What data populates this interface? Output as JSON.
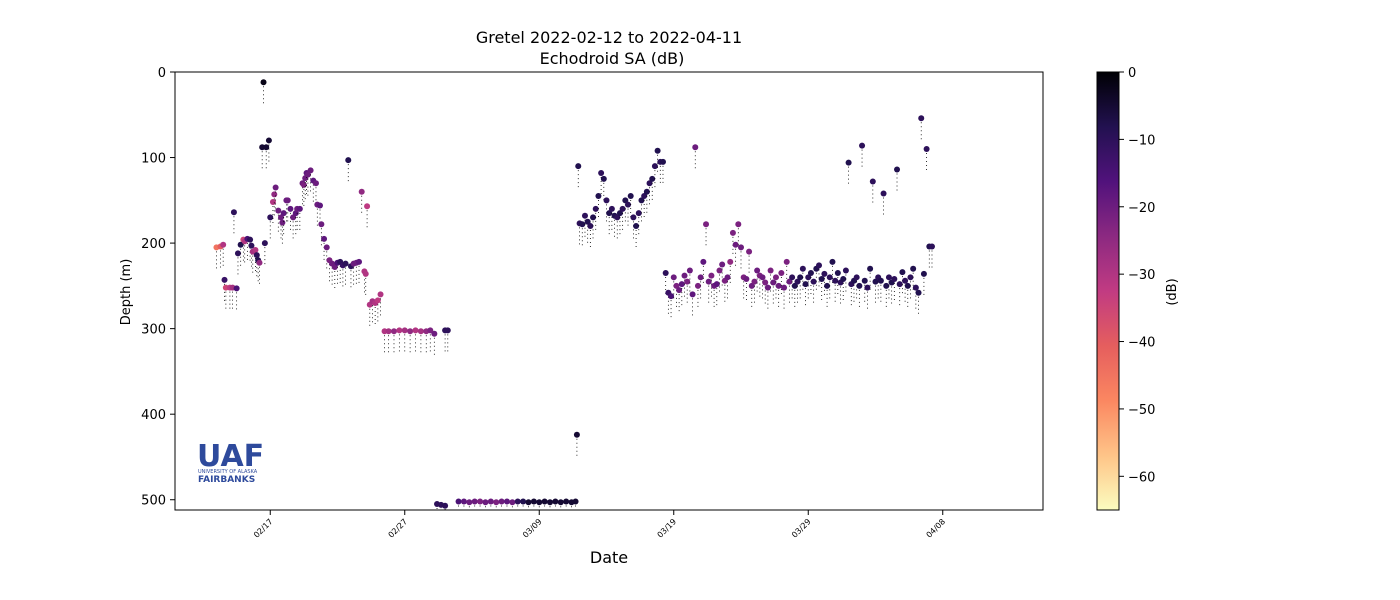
{
  "chart_data": {
    "type": "scatter",
    "title": "Gretel 2022-02-12 to 2022-04-11",
    "subtitle": "Echodroid SA (dB)",
    "xlabel": "Date",
    "ylabel": "Depth (m)",
    "x_ticks": [
      "02/17",
      "02/27",
      "03/09",
      "03/19",
      "03/29",
      "04/08"
    ],
    "y_ticks": [
      "0",
      "100",
      "200",
      "300",
      "400",
      "500"
    ],
    "ylim": [
      0,
      512
    ],
    "y_inverted": true,
    "colorbar": {
      "label": "(dB)",
      "ticks": [
        "0",
        "−10",
        "−20",
        "−30",
        "−40",
        "−50",
        "−60"
      ],
      "range": [
        -65,
        0
      ],
      "colormap": "magma_r",
      "colors": [
        "#fcfdbf",
        "#fec488",
        "#fb8761",
        "#e55e5e",
        "#c13b82",
        "#8c2981",
        "#51127c",
        "#221150",
        "#000004"
      ]
    },
    "series": [
      {
        "name": "",
        "comment_units": "x in days after 2022-02-12 (e.g. 5 = 02/17); y depth in m; sa in dB",
        "points": [
          [
            1.0,
            205,
            -45
          ],
          [
            1.3,
            204,
            -40
          ],
          [
            1.5,
            202,
            -30
          ],
          [
            1.6,
            243,
            -12
          ],
          [
            1.7,
            252,
            -35
          ],
          [
            2.0,
            252,
            -32
          ],
          [
            2.2,
            252,
            -28
          ],
          [
            2.3,
            164,
            -10
          ],
          [
            2.5,
            253,
            -15
          ],
          [
            2.6,
            212,
            -10
          ],
          [
            2.8,
            202,
            -8
          ],
          [
            3.0,
            196,
            -35
          ],
          [
            3.1,
            198,
            -30
          ],
          [
            3.3,
            195,
            -15
          ],
          [
            3.5,
            196,
            -10
          ],
          [
            3.6,
            203,
            -10
          ],
          [
            3.7,
            210,
            -28
          ],
          [
            3.9,
            208,
            -30
          ],
          [
            4.0,
            214,
            -10
          ],
          [
            4.1,
            220,
            -8
          ],
          [
            4.2,
            223,
            -25
          ],
          [
            4.4,
            88,
            -5
          ],
          [
            4.5,
            12,
            -2
          ],
          [
            4.6,
            200,
            -10
          ],
          [
            4.7,
            88,
            -5
          ],
          [
            4.9,
            80,
            -5
          ],
          [
            5.0,
            170,
            -10
          ],
          [
            5.2,
            152,
            -30
          ],
          [
            5.3,
            143,
            -25
          ],
          [
            5.4,
            135,
            -20
          ],
          [
            5.6,
            162,
            -20
          ],
          [
            5.8,
            170,
            -20
          ],
          [
            5.9,
            176,
            -20
          ],
          [
            6.0,
            165,
            -18
          ],
          [
            6.2,
            150,
            -20
          ],
          [
            6.3,
            150,
            -20
          ],
          [
            6.5,
            160,
            -18
          ],
          [
            6.7,
            170,
            -20
          ],
          [
            6.9,
            165,
            -18
          ],
          [
            7.0,
            160,
            -20
          ],
          [
            7.2,
            160,
            -18
          ],
          [
            7.4,
            130,
            -20
          ],
          [
            7.5,
            132,
            -22
          ],
          [
            7.6,
            124,
            -20
          ],
          [
            7.7,
            118,
            -18
          ],
          [
            7.8,
            120,
            -20
          ],
          [
            8.0,
            115,
            -20
          ],
          [
            8.2,
            127,
            -18
          ],
          [
            8.4,
            130,
            -20
          ],
          [
            8.5,
            155,
            -20
          ],
          [
            8.7,
            156,
            -18
          ],
          [
            8.8,
            178,
            -20
          ],
          [
            9.0,
            195,
            -18
          ],
          [
            9.2,
            205,
            -20
          ],
          [
            9.4,
            220,
            -22
          ],
          [
            9.6,
            224,
            -20
          ],
          [
            9.8,
            228,
            -20
          ],
          [
            10.0,
            223,
            -15
          ],
          [
            10.2,
            222,
            -10
          ],
          [
            10.4,
            226,
            -12
          ],
          [
            10.6,
            224,
            -10
          ],
          [
            10.8,
            103,
            -8
          ],
          [
            11.0,
            227,
            -10
          ],
          [
            11.2,
            224,
            -20
          ],
          [
            11.4,
            223,
            -20
          ],
          [
            11.6,
            222,
            -18
          ],
          [
            11.8,
            140,
            -25
          ],
          [
            12.0,
            233,
            -30
          ],
          [
            12.1,
            236,
            -30
          ],
          [
            12.2,
            157,
            -32
          ],
          [
            12.4,
            272,
            -30
          ],
          [
            12.6,
            268,
            -28
          ],
          [
            12.8,
            270,
            -30
          ],
          [
            13.0,
            267,
            -32
          ],
          [
            13.2,
            260,
            -30
          ],
          [
            13.5,
            303,
            -30
          ],
          [
            13.8,
            303,
            -28
          ],
          [
            14.2,
            303,
            -25
          ],
          [
            14.6,
            302,
            -30
          ],
          [
            15.0,
            302,
            -28
          ],
          [
            15.4,
            303,
            -25
          ],
          [
            15.8,
            302,
            -30
          ],
          [
            16.2,
            303,
            -28
          ],
          [
            16.6,
            303,
            -25
          ],
          [
            16.9,
            302,
            -22
          ],
          [
            17.2,
            306,
            -20
          ],
          [
            18.0,
            302,
            -10
          ],
          [
            18.2,
            302,
            -10
          ],
          [
            17.4,
            505,
            -10
          ],
          [
            17.7,
            506,
            -10
          ],
          [
            18.0,
            507,
            -10
          ],
          [
            19.0,
            502,
            -15
          ],
          [
            19.4,
            502,
            -18
          ],
          [
            19.8,
            503,
            -20
          ],
          [
            20.2,
            502,
            -20
          ],
          [
            20.6,
            502,
            -22
          ],
          [
            21.0,
            503,
            -20
          ],
          [
            21.4,
            502,
            -20
          ],
          [
            21.8,
            503,
            -22
          ],
          [
            22.2,
            502,
            -20
          ],
          [
            22.6,
            502,
            -18
          ],
          [
            23.0,
            503,
            -20
          ],
          [
            23.4,
            502,
            -10
          ],
          [
            23.8,
            502,
            -8
          ],
          [
            24.2,
            503,
            -5
          ],
          [
            24.6,
            502,
            -5
          ],
          [
            25.0,
            503,
            -5
          ],
          [
            25.4,
            502,
            -5
          ],
          [
            25.8,
            503,
            -5
          ],
          [
            26.2,
            502,
            -5
          ],
          [
            26.6,
            503,
            -5
          ],
          [
            27.0,
            502,
            -5
          ],
          [
            27.4,
            503,
            -5
          ],
          [
            27.7,
            502,
            -5
          ],
          [
            27.8,
            424,
            -5
          ],
          [
            27.9,
            110,
            -8
          ],
          [
            28.0,
            177,
            -10
          ],
          [
            28.2,
            178,
            -8
          ],
          [
            28.4,
            168,
            -10
          ],
          [
            28.6,
            175,
            -8
          ],
          [
            28.8,
            180,
            -10
          ],
          [
            29.0,
            170,
            -8
          ],
          [
            29.2,
            160,
            -10
          ],
          [
            29.4,
            145,
            -8
          ],
          [
            29.6,
            118,
            -10
          ],
          [
            29.8,
            125,
            -8
          ],
          [
            30.0,
            150,
            -10
          ],
          [
            30.2,
            165,
            -8
          ],
          [
            30.4,
            160,
            -10
          ],
          [
            30.6,
            168,
            -8
          ],
          [
            30.8,
            170,
            -10
          ],
          [
            31.0,
            165,
            -8
          ],
          [
            31.2,
            160,
            -10
          ],
          [
            31.4,
            150,
            -8
          ],
          [
            31.6,
            155,
            -10
          ],
          [
            31.8,
            145,
            -8
          ],
          [
            32.0,
            170,
            -10
          ],
          [
            32.2,
            180,
            -8
          ],
          [
            32.4,
            165,
            -10
          ],
          [
            32.6,
            150,
            -8
          ],
          [
            32.8,
            145,
            -10
          ],
          [
            33.0,
            140,
            -8
          ],
          [
            33.2,
            130,
            -10
          ],
          [
            33.4,
            125,
            -8
          ],
          [
            33.6,
            110,
            -10
          ],
          [
            33.8,
            92,
            -8
          ],
          [
            34.0,
            105,
            -10
          ],
          [
            34.2,
            105,
            -8
          ],
          [
            34.4,
            235,
            -10
          ],
          [
            34.6,
            258,
            -12
          ],
          [
            34.8,
            262,
            -15
          ],
          [
            35.0,
            240,
            -20
          ],
          [
            35.2,
            250,
            -22
          ],
          [
            35.4,
            255,
            -20
          ],
          [
            35.6,
            248,
            -18
          ],
          [
            35.8,
            238,
            -20
          ],
          [
            36.0,
            245,
            -22
          ],
          [
            36.2,
            232,
            -20
          ],
          [
            36.4,
            260,
            -18
          ],
          [
            36.6,
            88,
            -20
          ],
          [
            36.8,
            250,
            -22
          ],
          [
            37.0,
            240,
            -20
          ],
          [
            37.2,
            222,
            -18
          ],
          [
            37.4,
            178,
            -22
          ],
          [
            37.6,
            245,
            -20
          ],
          [
            37.8,
            238,
            -22
          ],
          [
            38.0,
            250,
            -20
          ],
          [
            38.2,
            248,
            -18
          ],
          [
            38.4,
            232,
            -22
          ],
          [
            38.6,
            225,
            -20
          ],
          [
            38.8,
            244,
            -22
          ],
          [
            39.0,
            240,
            -20
          ],
          [
            39.2,
            222,
            -25
          ],
          [
            39.4,
            188,
            -22
          ],
          [
            39.6,
            202,
            -20
          ],
          [
            39.8,
            178,
            -22
          ],
          [
            40.0,
            205,
            -20
          ],
          [
            40.2,
            240,
            -22
          ],
          [
            40.4,
            242,
            -20
          ],
          [
            40.6,
            210,
            -22
          ],
          [
            40.8,
            250,
            -20
          ],
          [
            41.0,
            245,
            -22
          ],
          [
            41.2,
            232,
            -20
          ],
          [
            41.4,
            238,
            -22
          ],
          [
            41.6,
            240,
            -20
          ],
          [
            41.8,
            246,
            -22
          ],
          [
            42.0,
            252,
            -20
          ],
          [
            42.2,
            232,
            -22
          ],
          [
            42.4,
            246,
            -20
          ],
          [
            42.6,
            240,
            -22
          ],
          [
            42.8,
            250,
            -20
          ],
          [
            43.0,
            235,
            -22
          ],
          [
            43.2,
            252,
            -20
          ],
          [
            43.4,
            222,
            -22
          ],
          [
            43.6,
            245,
            -20
          ],
          [
            43.8,
            240,
            -10
          ],
          [
            44.0,
            250,
            -8
          ],
          [
            44.2,
            245,
            -10
          ],
          [
            44.4,
            240,
            -8
          ],
          [
            44.6,
            230,
            -10
          ],
          [
            44.8,
            248,
            -8
          ],
          [
            45.0,
            240,
            -10
          ],
          [
            45.2,
            235,
            -8
          ],
          [
            45.4,
            245,
            -10
          ],
          [
            45.6,
            230,
            -8
          ],
          [
            45.8,
            226,
            -10
          ],
          [
            46.0,
            242,
            -8
          ],
          [
            46.2,
            236,
            -10
          ],
          [
            46.4,
            250,
            -8
          ],
          [
            46.6,
            240,
            -10
          ],
          [
            46.8,
            222,
            -8
          ],
          [
            47.0,
            244,
            -10
          ],
          [
            47.2,
            235,
            -8
          ],
          [
            47.4,
            246,
            -10
          ],
          [
            47.6,
            242,
            -8
          ],
          [
            47.8,
            232,
            -10
          ],
          [
            48.0,
            106,
            -8
          ],
          [
            48.2,
            248,
            -10
          ],
          [
            48.4,
            244,
            -8
          ],
          [
            48.6,
            240,
            -10
          ],
          [
            48.8,
            250,
            -8
          ],
          [
            49.0,
            86,
            -10
          ],
          [
            49.2,
            244,
            -8
          ],
          [
            49.4,
            252,
            -10
          ],
          [
            49.6,
            230,
            -8
          ],
          [
            49.8,
            128,
            -10
          ],
          [
            50.0,
            245,
            -8
          ],
          [
            50.2,
            240,
            -10
          ],
          [
            50.4,
            244,
            -8
          ],
          [
            50.6,
            142,
            -10
          ],
          [
            50.8,
            250,
            -8
          ],
          [
            51.0,
            240,
            -10
          ],
          [
            51.2,
            246,
            -8
          ],
          [
            51.4,
            242,
            -10
          ],
          [
            51.6,
            114,
            -8
          ],
          [
            51.8,
            248,
            -10
          ],
          [
            52.0,
            234,
            -8
          ],
          [
            52.2,
            244,
            -10
          ],
          [
            52.4,
            250,
            -8
          ],
          [
            52.6,
            240,
            -10
          ],
          [
            52.8,
            230,
            -8
          ],
          [
            53.0,
            252,
            -10
          ],
          [
            53.2,
            258,
            -8
          ],
          [
            53.4,
            54,
            -10
          ],
          [
            53.6,
            236,
            -8
          ],
          [
            53.8,
            90,
            -10
          ],
          [
            54.0,
            204,
            -8
          ],
          [
            54.2,
            204,
            -10
          ]
        ]
      }
    ]
  }
}
